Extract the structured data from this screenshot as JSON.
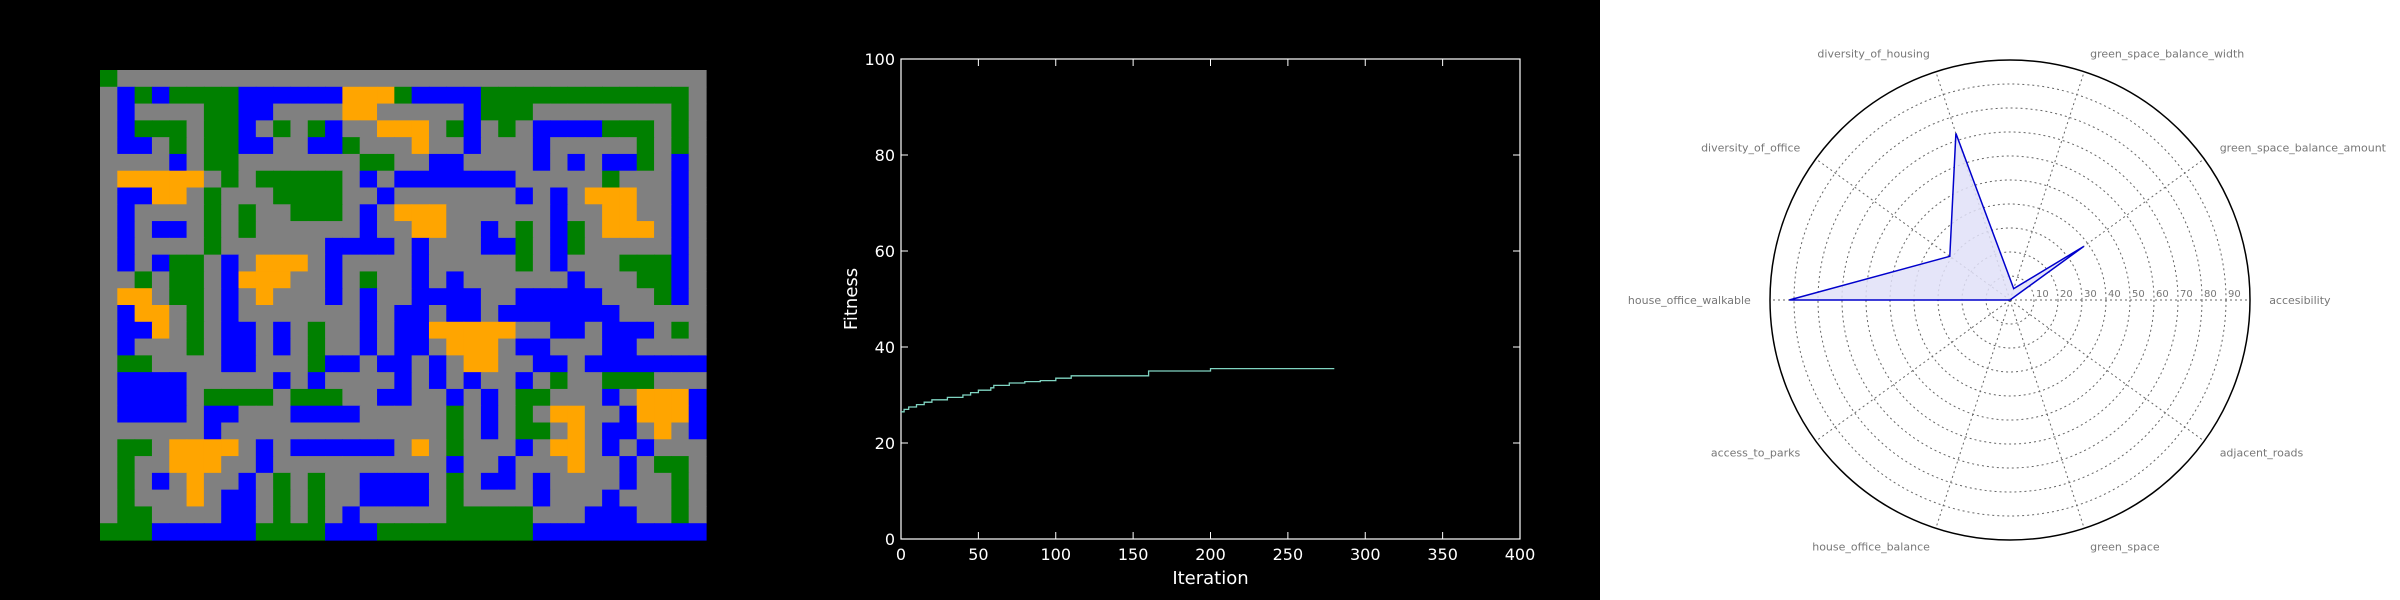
{
  "colors": {
    "road": "#808080",
    "park": "#008000",
    "office": "#0000ff",
    "housing": "#ffa500",
    "fitness_line": "#7fd4c1",
    "radar_line": "#0000cc",
    "radar_fill": "#e0e0f8"
  },
  "grid_map": {
    "rows": [
      "GOOOOOOOOOOOOOOOOOOOOOOOOOOOOOOOOOO",
      "OBGBGGGGBBBBBBAAAGBBBBGGGGGGGGGGGGO",
      "OBOOOOGGBBOOOOAAOOOOOBGGGOOOOOOOOGO",
      "OBGGGOGGBOGOGBOOAAAOGBOGOBBBBGGGOGO",
      "OBBOGOGGBBOOBBGOOOAOOBOOOBOOOOOGOGO",
      "OOOOBOGGOOOOOOOGGOOBBOOOOBOBOBBGOBO",
      "OAAAAAOGOGGGGGOBOBBBBBBBOOOOOGOOOBO",
      "OBBAAOGOOOGGGGOOBOOOOOOOBOBOAAAOOBO",
      "OBOOOOGOGOOGGGOBOAAAOOOOOOBOOAAOOBO",
      "OBOBBOGOGOOOOOOBOOAAOOBOGOBGOAAAOBO",
      "OBOOOOGOOOOOOBBBBOBOOOBBGOBGOOOOOBO",
      "OBOBGGOBOAAAOBOOOOBOOOOOGOBOOOGGGBO",
      "OOGOGGOBAAAOOBOGOOBOBOOOOOOBOOOGGBO",
      "OAAOGGOBOAOOOBOBOOBBBBOOBBBBBOOOGBO",
      "OBAAOGOBOOOOOOOBOBBOBBOBBBBBBBOOOOO",
      "OBBAOGOBBOBOGOOBOBBAAAAAOOBBOBBBOGO",
      "OBOOOGOBBOBOGOOBOBBOAAAOBBOOOBBOOOO",
      "OGGOOOOBBOOOGBBOBBOBOAAOOBBOBBBBBBB",
      "OBBBBOOOOOBOBOOOOBOBOBOOBOGOOGGGOOO",
      "OBBBBOGGGGOGGGOOBBOOBOBOGGOOOBOAAAB",
      "OBBBBOBBOOOBBBBOOOOOGOBOGOAAOOBAAAB",
      "OOOOOOBOOOOOOOOOOOOOGOBOGGOAOBBOAOB",
      "OGGOAAAAOBOBBBBBBOAOGOOOBOAAOBOBOOO",
      "OGOOAAAOOBOOOOOOOOOOBOOBOOOAOOBOGGO",
      "OGOBOAOOBOGOGOOBBBBOGOBBOBOOOOBOOGO",
      "OGOOOAOBBOGOGOOBBBBOGOOOOBOOOBOOOGO",
      "OGGOOOOBBOGOGOBOOOOOGGGGGOOOBBBOOGO",
      "GGGBBBBBBGGGGBBBGGGGGGGGGBBBBBBBBBB"
    ],
    "legend_codes": {
      "O": "road",
      "G": "park",
      "B": "office",
      "A": "housing"
    }
  },
  "chart_data": [
    {
      "type": "line",
      "title": "",
      "xlabel": "Iteration",
      "ylabel": "Fitness",
      "xlim": [
        0,
        400
      ],
      "ylim": [
        0,
        100
      ],
      "xticks": [
        "0",
        "50",
        "100",
        "150",
        "200",
        "250",
        "300",
        "350",
        "400"
      ],
      "yticks": [
        "0",
        "20",
        "40",
        "60",
        "80",
        "100"
      ],
      "grid": false,
      "series": [
        {
          "x": [
            0,
            2,
            5,
            10,
            15,
            20,
            30,
            40,
            45,
            50,
            58,
            60,
            65,
            70,
            80,
            90,
            95,
            100,
            105,
            110,
            150,
            160,
            195,
            200,
            250,
            280
          ],
          "y": [
            26.5,
            27.0,
            27.5,
            28.0,
            28.5,
            29.0,
            29.5,
            30.0,
            30.5,
            31.0,
            31.5,
            32.0,
            32.0,
            32.5,
            32.8,
            33.0,
            33.0,
            33.5,
            33.5,
            34.0,
            34.0,
            35.0,
            35.0,
            35.5,
            35.5,
            35.5
          ]
        }
      ]
    },
    {
      "type": "radar",
      "title": "",
      "rmax": 100,
      "ring_labels": [
        "10",
        "20",
        "30",
        "40",
        "50",
        "60",
        "70",
        "80",
        "90"
      ],
      "axes": [
        "accesibility",
        "green_space_balance_amount",
        "green_space_balance_width",
        "diversity_of_housing",
        "diversity_of_office",
        "house_office_walkable",
        "access_to_parks",
        "house_office_balance",
        "green_space",
        "adjacent_roads"
      ],
      "grid": true,
      "series": [
        {
          "values": [
            0,
            38,
            5,
            73,
            31,
            92,
            0,
            0,
            0,
            0
          ]
        }
      ]
    }
  ]
}
